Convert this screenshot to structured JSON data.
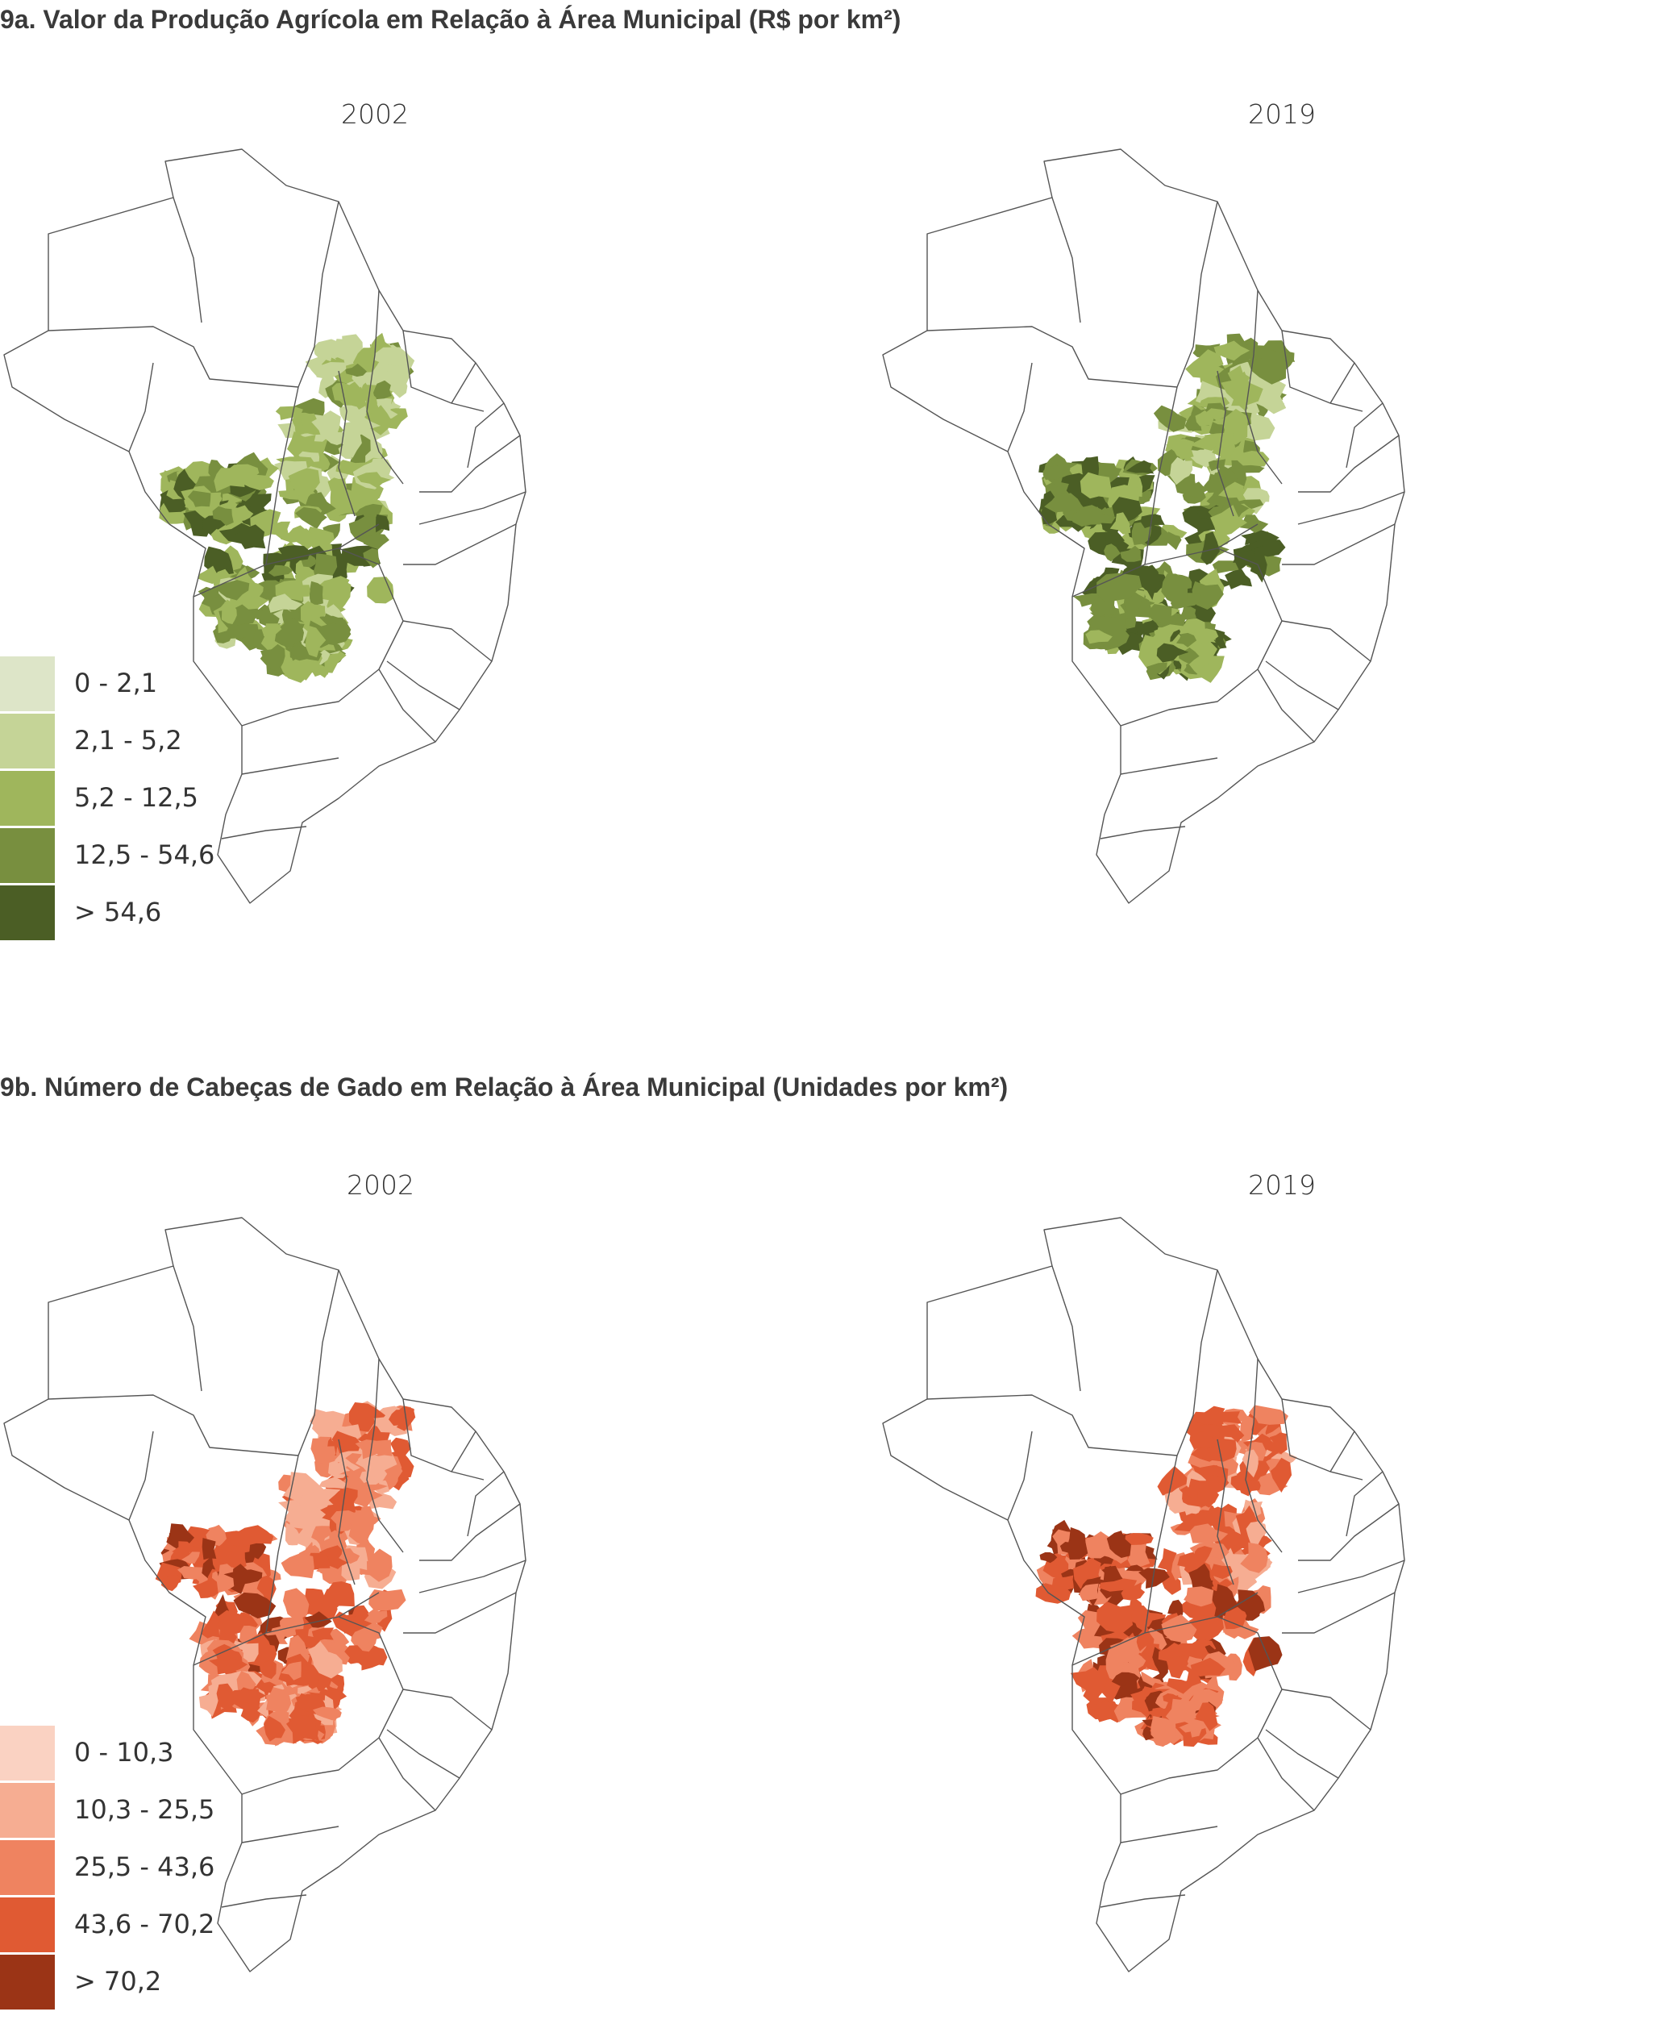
{
  "sections": [
    {
      "title": "9a. Valor da Produção Agrícola em Relação à Área Municipal (R$ por km²)",
      "years": [
        "2002",
        "2019"
      ],
      "legend": [
        {
          "label": "0 - 2,1",
          "color": "#dde5c8"
        },
        {
          "label": "2,1 - 5,2",
          "color": "#c5d497"
        },
        {
          "label": "5,2 - 12,5",
          "color": "#9fb65c"
        },
        {
          "label": "12,5 - 54,6",
          "color": "#788f3f"
        },
        {
          "label": "> 54,6",
          "color": "#4b5e25"
        }
      ]
    },
    {
      "title": "9b. Número de Cabeças de Gado em Relação à Área Municipal (Unidades por km²)",
      "years": [
        "2002",
        "2019"
      ],
      "legend": [
        {
          "label": "0 - 10,3",
          "color": "#fad2c2"
        },
        {
          "label": "10,3 - 25,5",
          "color": "#f6ad92"
        },
        {
          "label": "25,5 - 43,6",
          "color": "#ef8360"
        },
        {
          "label": "43,6 - 70,2",
          "color": "#e05a33"
        },
        {
          "label": "> 70,2",
          "color": "#9b3416"
        }
      ]
    }
  ]
}
